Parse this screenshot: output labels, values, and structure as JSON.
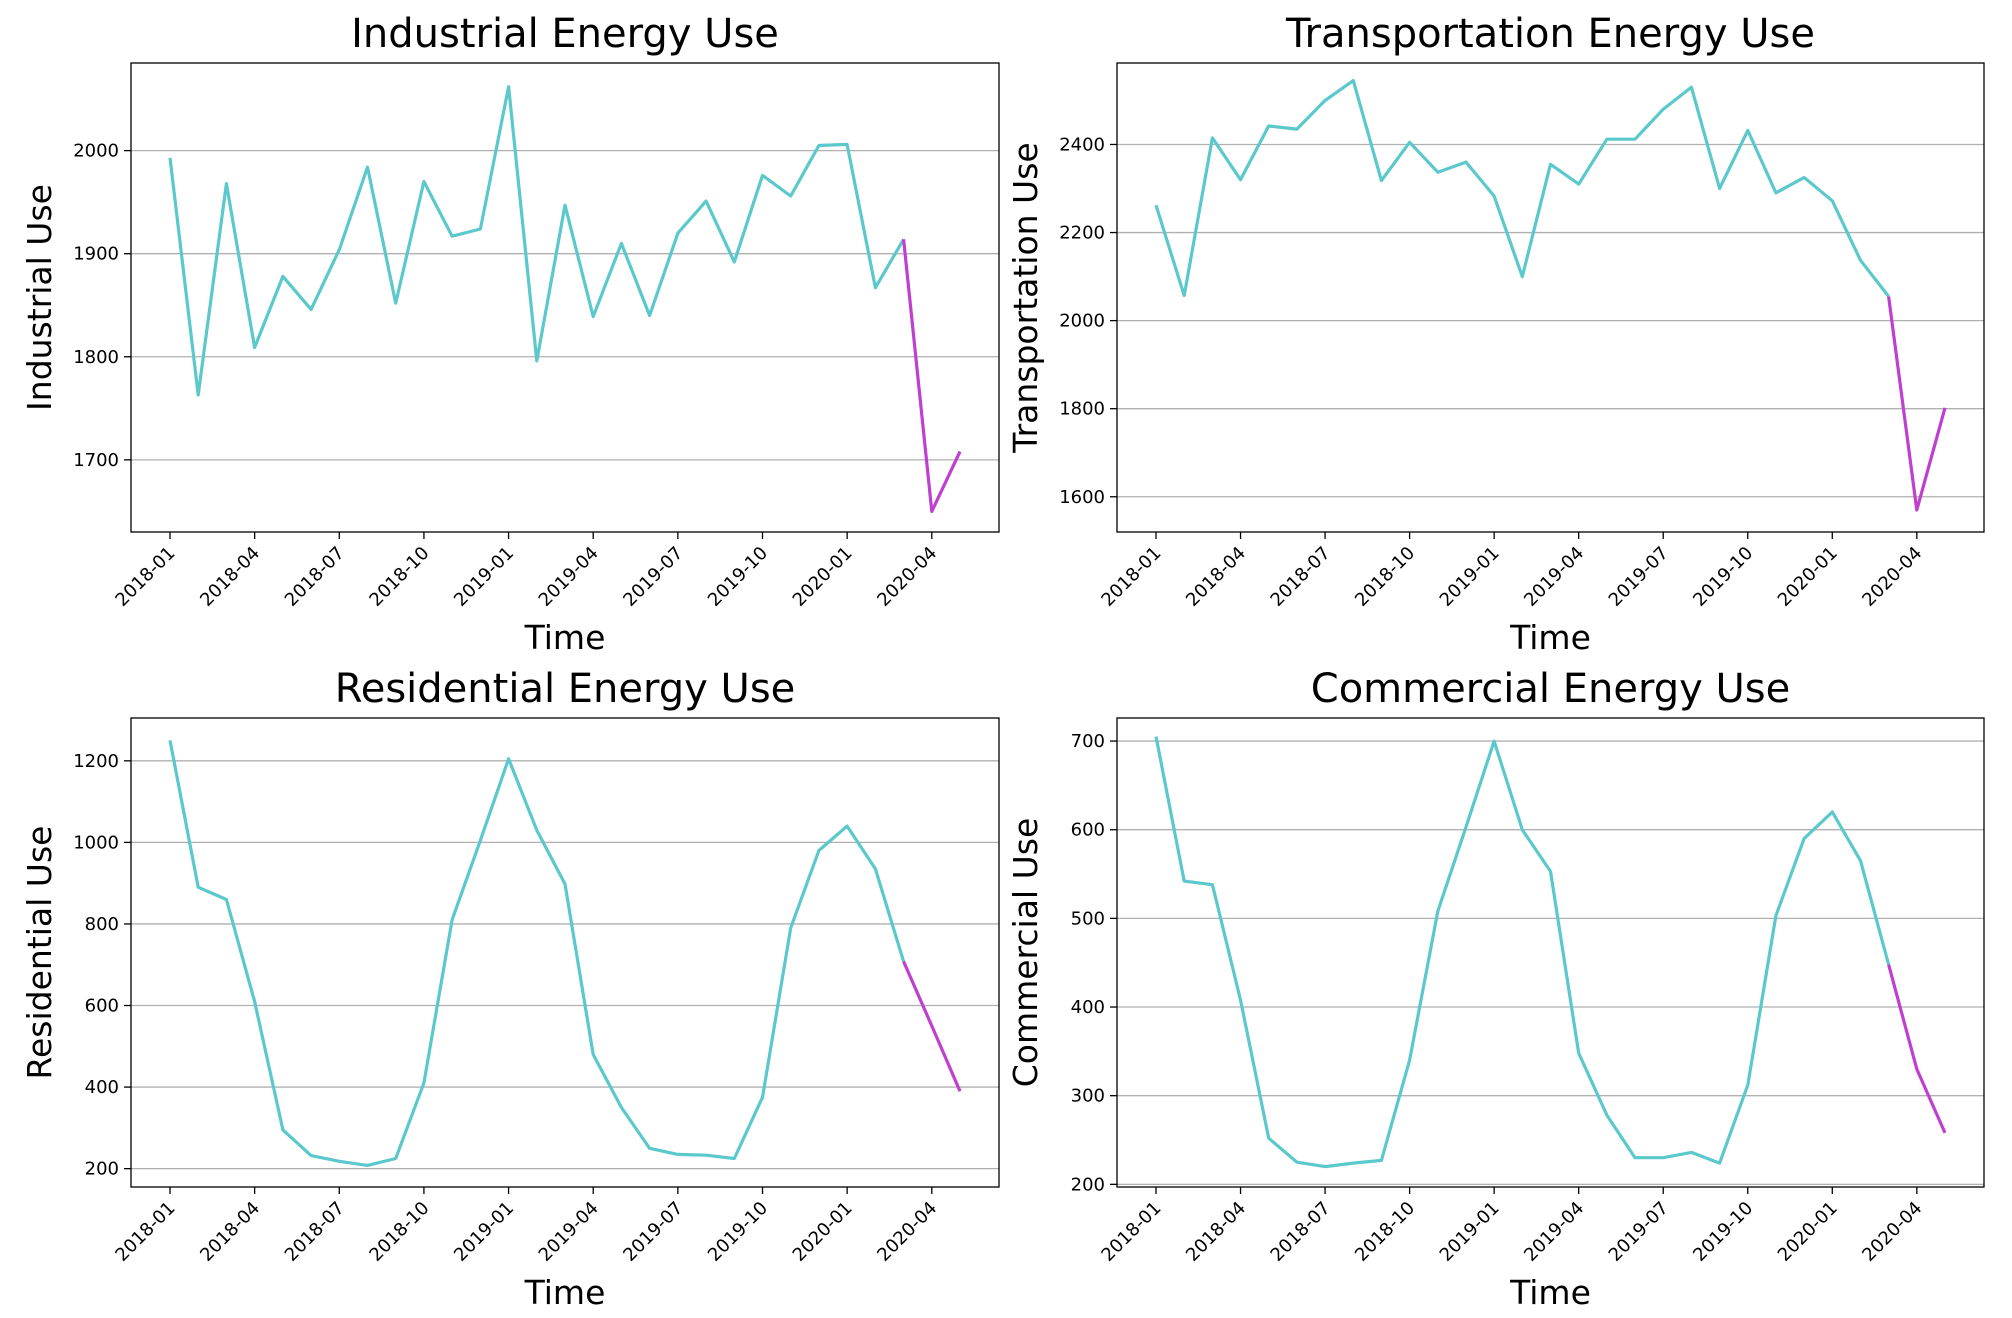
{
  "colors": {
    "history": "#5bc8cc",
    "recent": "#bf3fd0",
    "grid": "#b0b0b0"
  },
  "chart_data": [
    {
      "type": "line",
      "title": "Industrial Energy Use",
      "xlabel": "Time",
      "ylabel": "Industrial Use",
      "x_tick_labels": [
        "2018-01",
        "2018-04",
        "2018-07",
        "2018-10",
        "2019-01",
        "2019-04",
        "2019-07",
        "2019-10",
        "2020-01",
        "2020-04"
      ],
      "y_ticks": [
        1700,
        1800,
        1900,
        2000
      ],
      "ylim": [
        1630,
        2085
      ],
      "grid": "y",
      "x": [
        "2018-01",
        "2018-02",
        "2018-03",
        "2018-04",
        "2018-05",
        "2018-06",
        "2018-07",
        "2018-08",
        "2018-09",
        "2018-10",
        "2018-11",
        "2018-12",
        "2019-01",
        "2019-02",
        "2019-03",
        "2019-04",
        "2019-05",
        "2019-06",
        "2019-07",
        "2019-08",
        "2019-09",
        "2019-10",
        "2019-11",
        "2019-12",
        "2020-01",
        "2020-02",
        "2020-03",
        "2020-04",
        "2020-05"
      ],
      "series": [
        {
          "values": [
            1993,
            1763,
            1968,
            1809,
            1878,
            1846,
            1904,
            1984,
            1852,
            1970,
            1917,
            1924,
            2062,
            1796,
            1947,
            1839,
            1910,
            1840,
            1920,
            1951,
            1892,
            1976,
            1956,
            2005,
            2006,
            1867,
            1914,
            1650,
            1708
          ]
        }
      ],
      "recent_from_index": 26
    },
    {
      "type": "line",
      "title": "Transportation Energy Use",
      "xlabel": "Time",
      "ylabel": "Transportation Use",
      "x_tick_labels": [
        "2018-01",
        "2018-04",
        "2018-07",
        "2018-10",
        "2019-01",
        "2019-04",
        "2019-07",
        "2019-10",
        "2020-01",
        "2020-04"
      ],
      "y_ticks": [
        1600,
        1800,
        2000,
        2200,
        2400
      ],
      "ylim": [
        1520,
        2585
      ],
      "grid": "y",
      "x": [
        "2018-01",
        "2018-02",
        "2018-03",
        "2018-04",
        "2018-05",
        "2018-06",
        "2018-07",
        "2018-08",
        "2018-09",
        "2018-10",
        "2018-11",
        "2018-12",
        "2019-01",
        "2019-02",
        "2019-03",
        "2019-04",
        "2019-05",
        "2019-06",
        "2019-07",
        "2019-08",
        "2019-09",
        "2019-10",
        "2019-11",
        "2019-12",
        "2020-01",
        "2020-02",
        "2020-03",
        "2020-04",
        "2020-05"
      ],
      "series": [
        {
          "values": [
            2262,
            2057,
            2415,
            2320,
            2442,
            2435,
            2500,
            2545,
            2318,
            2405,
            2337,
            2360,
            2283,
            2100,
            2355,
            2310,
            2412,
            2412,
            2480,
            2530,
            2300,
            2432,
            2290,
            2325,
            2272,
            2137,
            2055,
            1570,
            1802
          ]
        }
      ],
      "recent_from_index": 26
    },
    {
      "type": "line",
      "title": "Residential Energy Use",
      "xlabel": "Time",
      "ylabel": "Residential Use",
      "x_tick_labels": [
        "2018-01",
        "2018-04",
        "2018-07",
        "2018-10",
        "2019-01",
        "2019-04",
        "2019-07",
        "2019-10",
        "2020-01",
        "2020-04"
      ],
      "y_ticks": [
        200,
        400,
        600,
        800,
        1000,
        1200
      ],
      "ylim": [
        155,
        1305
      ],
      "grid": "y",
      "x": [
        "2018-01",
        "2018-02",
        "2018-03",
        "2018-04",
        "2018-05",
        "2018-06",
        "2018-07",
        "2018-08",
        "2018-09",
        "2018-10",
        "2018-11",
        "2018-12",
        "2019-01",
        "2019-02",
        "2019-03",
        "2019-04",
        "2019-05",
        "2019-06",
        "2019-07",
        "2019-08",
        "2019-09",
        "2019-10",
        "2019-11",
        "2019-12",
        "2020-01",
        "2020-02",
        "2020-03",
        "2020-04",
        "2020-05"
      ],
      "series": [
        {
          "values": [
            1250,
            890,
            860,
            610,
            295,
            232,
            218,
            208,
            225,
            410,
            810,
            1005,
            1205,
            1030,
            898,
            480,
            350,
            250,
            235,
            233,
            225,
            375,
            790,
            980,
            1040,
            935,
            708,
            550,
            390
          ]
        }
      ],
      "recent_from_index": 26
    },
    {
      "type": "line",
      "title": "Commercial Energy Use",
      "xlabel": "Time",
      "ylabel": "Commercial Use",
      "x_tick_labels": [
        "2018-01",
        "2018-04",
        "2018-07",
        "2018-10",
        "2019-01",
        "2019-04",
        "2019-07",
        "2019-10",
        "2020-01",
        "2020-04"
      ],
      "y_ticks": [
        200,
        300,
        400,
        500,
        600,
        700
      ],
      "ylim": [
        197,
        726
      ],
      "grid": "y",
      "x": [
        "2018-01",
        "2018-02",
        "2018-03",
        "2018-04",
        "2018-05",
        "2018-06",
        "2018-07",
        "2018-08",
        "2018-09",
        "2018-10",
        "2018-11",
        "2018-12",
        "2019-01",
        "2019-02",
        "2019-03",
        "2019-04",
        "2019-05",
        "2019-06",
        "2019-07",
        "2019-08",
        "2019-09",
        "2019-10",
        "2019-11",
        "2019-12",
        "2020-01",
        "2020-02",
        "2020-03",
        "2020-04",
        "2020-05"
      ],
      "series": [
        {
          "values": [
            705,
            542,
            538,
            408,
            252,
            225,
            220,
            224,
            227,
            340,
            508,
            603,
            700,
            600,
            553,
            348,
            278,
            230,
            230,
            236,
            224,
            312,
            503,
            590,
            620,
            565,
            448,
            330,
            258
          ]
        }
      ],
      "recent_from_index": 26
    }
  ]
}
